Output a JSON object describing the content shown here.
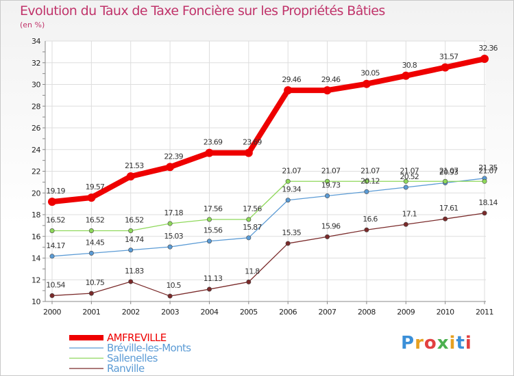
{
  "header": {
    "title": "Evolution du Taux de Taxe Foncière sur les Propriétés Bâties",
    "subtitle": "(en %)"
  },
  "logo": {
    "text": "Proxiti",
    "colors": [
      "#3a8fd8",
      "#e6a020",
      "#e24040",
      "#4cb050",
      "#e6a020",
      "#3a8fd8",
      "#e24040"
    ]
  },
  "chart_data": {
    "type": "line",
    "title": "Evolution du Taux de Taxe Foncière sur les Propriétés Bâties",
    "ylabel": "(en %)",
    "xlabel": "",
    "categories": [
      "2000",
      "2001",
      "2002",
      "2003",
      "2004",
      "2005",
      "2006",
      "2007",
      "2008",
      "2009",
      "2010",
      "2011"
    ],
    "ylim": [
      10,
      34
    ],
    "yticks": [
      10,
      12,
      14,
      16,
      18,
      20,
      22,
      24,
      26,
      28,
      30,
      32,
      34
    ],
    "grid": true,
    "legend_position": "bottom-left",
    "series": [
      {
        "name": "AMFREVILLE",
        "color": "#ee0000",
        "values": [
          19.19,
          19.57,
          21.53,
          22.39,
          23.69,
          23.69,
          29.46,
          29.46,
          30.05,
          30.8,
          31.57,
          32.36
        ],
        "labels": [
          "19.19",
          "19.57",
          "21.53",
          "22.39",
          "23.69",
          "23.69",
          "29.46",
          "29.46",
          "30.05",
          "30.8",
          "31.57",
          "32.36"
        ]
      },
      {
        "name": "Bréville-les-Monts",
        "color": "#5b9bd5",
        "values": [
          14.17,
          14.45,
          14.74,
          15.03,
          15.56,
          15.87,
          19.34,
          19.73,
          20.12,
          20.52,
          20.93,
          21.35
        ],
        "labels": [
          "14.17",
          "14.45",
          "14.74",
          "15.03",
          "15.56",
          "15.87",
          "19.34",
          "19.73",
          "20.12",
          "20.52",
          "20.93",
          "21.35"
        ]
      },
      {
        "name": "Sallenelles",
        "color": "#8ed85a",
        "values": [
          16.52,
          16.52,
          16.52,
          17.18,
          17.56,
          17.56,
          21.07,
          21.07,
          21.07,
          21.07,
          21.07,
          21.07
        ],
        "labels": [
          "16.52",
          "16.52",
          "16.52",
          "17.18",
          "17.56",
          "17.56",
          "21.07",
          "21.07",
          "21.07",
          "21.07",
          "21.07",
          "21.07"
        ]
      },
      {
        "name": "Ranville",
        "color": "#7a2a2a",
        "values": [
          10.54,
          10.75,
          11.83,
          10.5,
          11.13,
          11.8,
          15.35,
          15.96,
          16.6,
          17.1,
          17.61,
          18.14
        ],
        "labels": [
          "10.54",
          "10.75",
          "11.83",
          "10.5",
          "11.13",
          "11.8",
          "15.35",
          "15.96",
          "16.6",
          "17.1",
          "17.61",
          "18.14"
        ]
      }
    ]
  }
}
